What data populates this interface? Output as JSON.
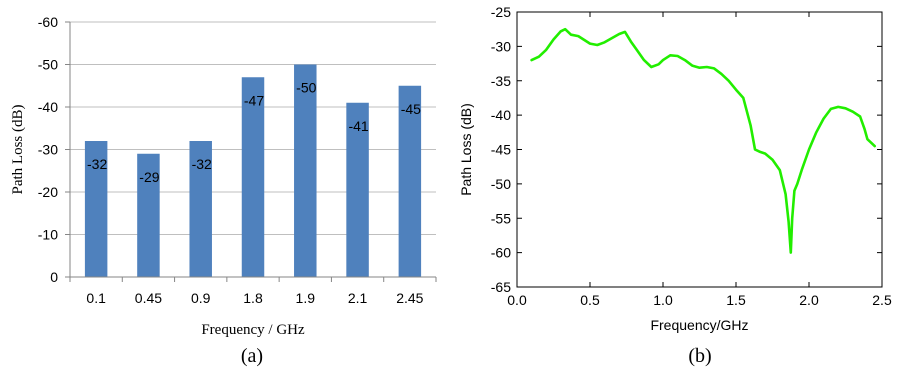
{
  "chart_data": [
    {
      "type": "bar",
      "caption": "(a)",
      "xlabel": "Frequency / GHz",
      "ylabel": "Path Loss (dB)",
      "categories": [
        "0.1",
        "0.45",
        "0.9",
        "1.8",
        "1.9",
        "2.1",
        "2.45"
      ],
      "values": [
        -32,
        -29,
        -32,
        -47,
        -50,
        -41,
        -45
      ],
      "data_labels": [
        "-32",
        "-29",
        "-32",
        "-47",
        "-50",
        "-41",
        "-45"
      ],
      "ylim": [
        0,
        -60
      ],
      "yticks": [
        0,
        -10,
        -20,
        -30,
        -40,
        -50,
        -60
      ],
      "ytick_labels": [
        "0",
        "-10",
        "-20",
        "-30",
        "-40",
        "-50",
        "-60"
      ],
      "y_axis_reversed": true,
      "grid": true,
      "bar_color": "#4f81bd"
    },
    {
      "type": "line",
      "caption": "(b)",
      "xlabel": "Frequency/GHz",
      "ylabel": "Path Loss (dB)",
      "xlim": [
        0,
        2.5
      ],
      "ylim": [
        -65,
        -25
      ],
      "xticks": [
        0,
        0.5,
        1,
        1.5,
        2,
        2.5
      ],
      "xtick_labels": [
        "0.0",
        "0.5",
        "1.0",
        "1.5",
        "2.0",
        "2.5"
      ],
      "yticks": [
        -25,
        -30,
        -35,
        -40,
        -45,
        -50,
        -55,
        -60,
        -65
      ],
      "ytick_labels": [
        "-25",
        "-30",
        "-35",
        "-40",
        "-45",
        "-50",
        "-55",
        "-60",
        "-65"
      ],
      "grid": false,
      "series": [
        {
          "color": "#22ee00",
          "x": [
            0.1,
            0.15,
            0.2,
            0.25,
            0.3,
            0.33,
            0.37,
            0.42,
            0.5,
            0.55,
            0.6,
            0.65,
            0.7,
            0.74,
            0.78,
            0.82,
            0.87,
            0.92,
            0.97,
            1.0,
            1.05,
            1.1,
            1.15,
            1.2,
            1.25,
            1.3,
            1.35,
            1.4,
            1.45,
            1.5,
            1.55,
            1.6,
            1.63,
            1.66,
            1.7,
            1.75,
            1.8,
            1.84,
            1.86,
            1.875,
            1.885,
            1.9,
            1.92,
            1.95,
            2.0,
            2.05,
            2.1,
            2.15,
            2.2,
            2.25,
            2.3,
            2.35,
            2.38,
            2.4,
            2.45
          ],
          "y": [
            -32,
            -31.5,
            -30.5,
            -29,
            -27.8,
            -27.5,
            -28.3,
            -28.5,
            -29.6,
            -29.8,
            -29.4,
            -28.8,
            -28.2,
            -27.9,
            -29.3,
            -30.5,
            -32,
            -33,
            -32.6,
            -32,
            -31.3,
            -31.4,
            -32,
            -32.8,
            -33.1,
            -33,
            -33.2,
            -34,
            -35,
            -36.3,
            -37.5,
            -41.5,
            -45,
            -45.3,
            -45.6,
            -46.5,
            -48,
            -51.5,
            -55.5,
            -60,
            -55,
            -51,
            -50,
            -48,
            -45,
            -42.5,
            -40.5,
            -39.1,
            -38.8,
            -39,
            -39.5,
            -40.2,
            -42,
            -43.5,
            -44.5
          ]
        }
      ]
    }
  ]
}
